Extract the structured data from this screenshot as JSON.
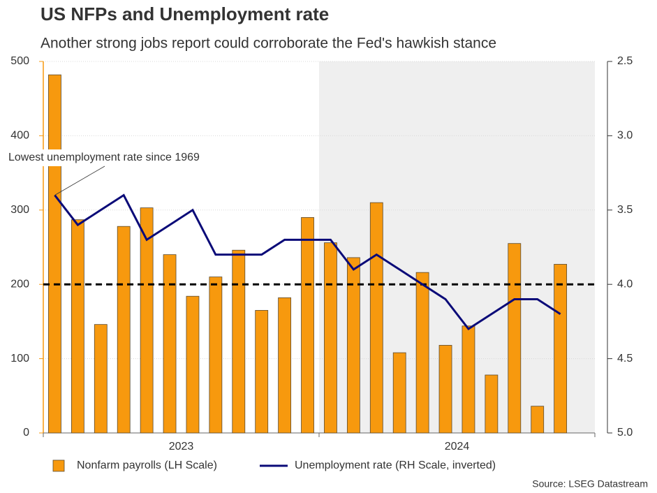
{
  "chart_data": {
    "type": "bar_line",
    "title": "US NFPs and Unemployment rate",
    "subtitle": "Another strong jobs report could corroborate the Fed's hawkish stance",
    "categories": [
      null,
      null,
      null,
      null,
      null,
      null,
      null,
      null,
      null,
      null,
      null,
      null,
      null,
      null,
      null,
      null,
      null,
      null,
      null,
      null,
      null,
      null,
      null,
      null
    ],
    "xgroups": [
      {
        "label": "2023",
        "start": 0,
        "end": 11
      },
      {
        "label": "2024",
        "start": 12,
        "end": 23
      }
    ],
    "series": [
      {
        "name": "Nonfarm payrolls (LH Scale)",
        "color": "#f7990e",
        "axis": "y",
        "values": [
          482,
          287,
          146,
          278,
          303,
          240,
          184,
          210,
          246,
          165,
          182,
          290,
          256,
          236,
          310,
          108,
          216,
          118,
          144,
          78,
          255,
          36,
          227,
          null
        ]
      },
      {
        "name": "Unemployment rate (RH Scale, inverted)",
        "color": "#0a0a78",
        "axis": "y2",
        "values": [
          3.4,
          3.6,
          3.5,
          3.4,
          3.7,
          3.6,
          3.5,
          3.8,
          3.8,
          3.8,
          3.7,
          3.7,
          3.7,
          3.9,
          3.8,
          3.9,
          4.0,
          4.1,
          4.3,
          4.2,
          4.1,
          4.1,
          4.2,
          null
        ]
      }
    ],
    "ylim": [
      0,
      500
    ],
    "yticks": [
      0,
      100,
      200,
      300,
      400,
      500
    ],
    "y2lim": [
      2.5,
      5.0
    ],
    "y2_inverted": true,
    "y2ticks": [
      {
        "value": 2.5,
        "label": "2.5"
      },
      {
        "value": 3.0,
        "label": "3.0"
      },
      {
        "value": 3.5,
        "label": "3.5"
      },
      {
        "value": 4.0,
        "label": "4.0"
      },
      {
        "value": 4.5,
        "label": "4.5"
      },
      {
        "value": 5.0,
        "label": "5.0"
      }
    ],
    "reference_line": 200,
    "shade": {
      "from": 12,
      "color": "#efefef"
    },
    "annotation": {
      "text": "Lowest unemployment rate since 1969",
      "index": 0
    },
    "grid": true,
    "legend": "bottom",
    "source": "Source: LSEG Datastream"
  }
}
